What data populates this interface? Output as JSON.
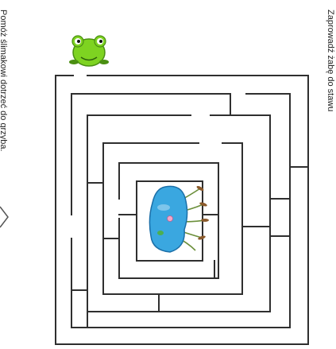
{
  "titles": {
    "top_instruction": "Zaprowadź żabę do stawu",
    "bottom_instruction": "Pomóż ślimakowi dotrzeć do grzyba."
  },
  "maze": {
    "start_character": "frog-icon",
    "goal": "pond-icon"
  },
  "colors": {
    "frog_body": "#7ed321",
    "frog_dark": "#4a8f12",
    "pond_water": "#3aa7e0",
    "pond_edge": "#1b6fa8",
    "reeds": "#6b8f3a",
    "walls": "#2f2f2f"
  }
}
